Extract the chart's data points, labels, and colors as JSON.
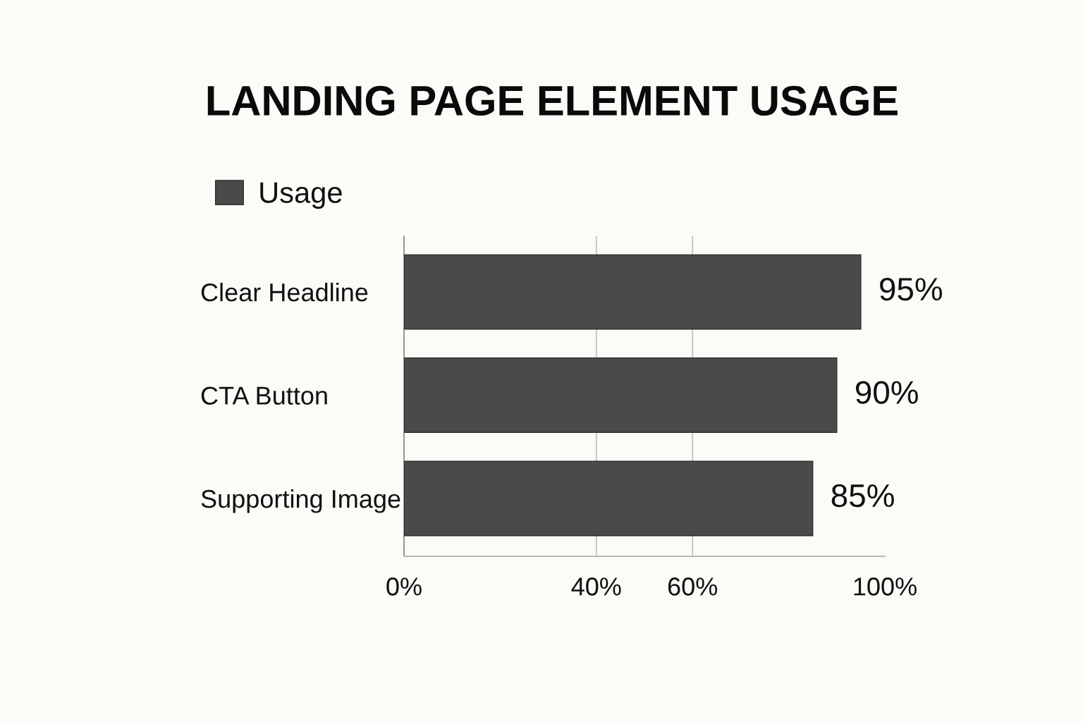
{
  "chart_data": {
    "type": "bar",
    "orientation": "horizontal",
    "title": "LANDING PAGE ELEMENT USAGE",
    "categories": [
      "Clear Headline",
      "CTA Button",
      "Supporting Image"
    ],
    "series": [
      {
        "name": "Usage",
        "color": "#4a4a4a",
        "values": [
          95,
          90,
          85
        ],
        "value_labels": [
          "95%",
          "90%",
          "85%"
        ]
      }
    ],
    "xlim": [
      0,
      100
    ],
    "xticks": [
      {
        "value": 0,
        "label": "0%"
      },
      {
        "value": 40,
        "label": "40%"
      },
      {
        "value": 60,
        "label": "60%"
      },
      {
        "value": 100,
        "label": "100%"
      }
    ],
    "grid": "x",
    "legend": "top left"
  }
}
